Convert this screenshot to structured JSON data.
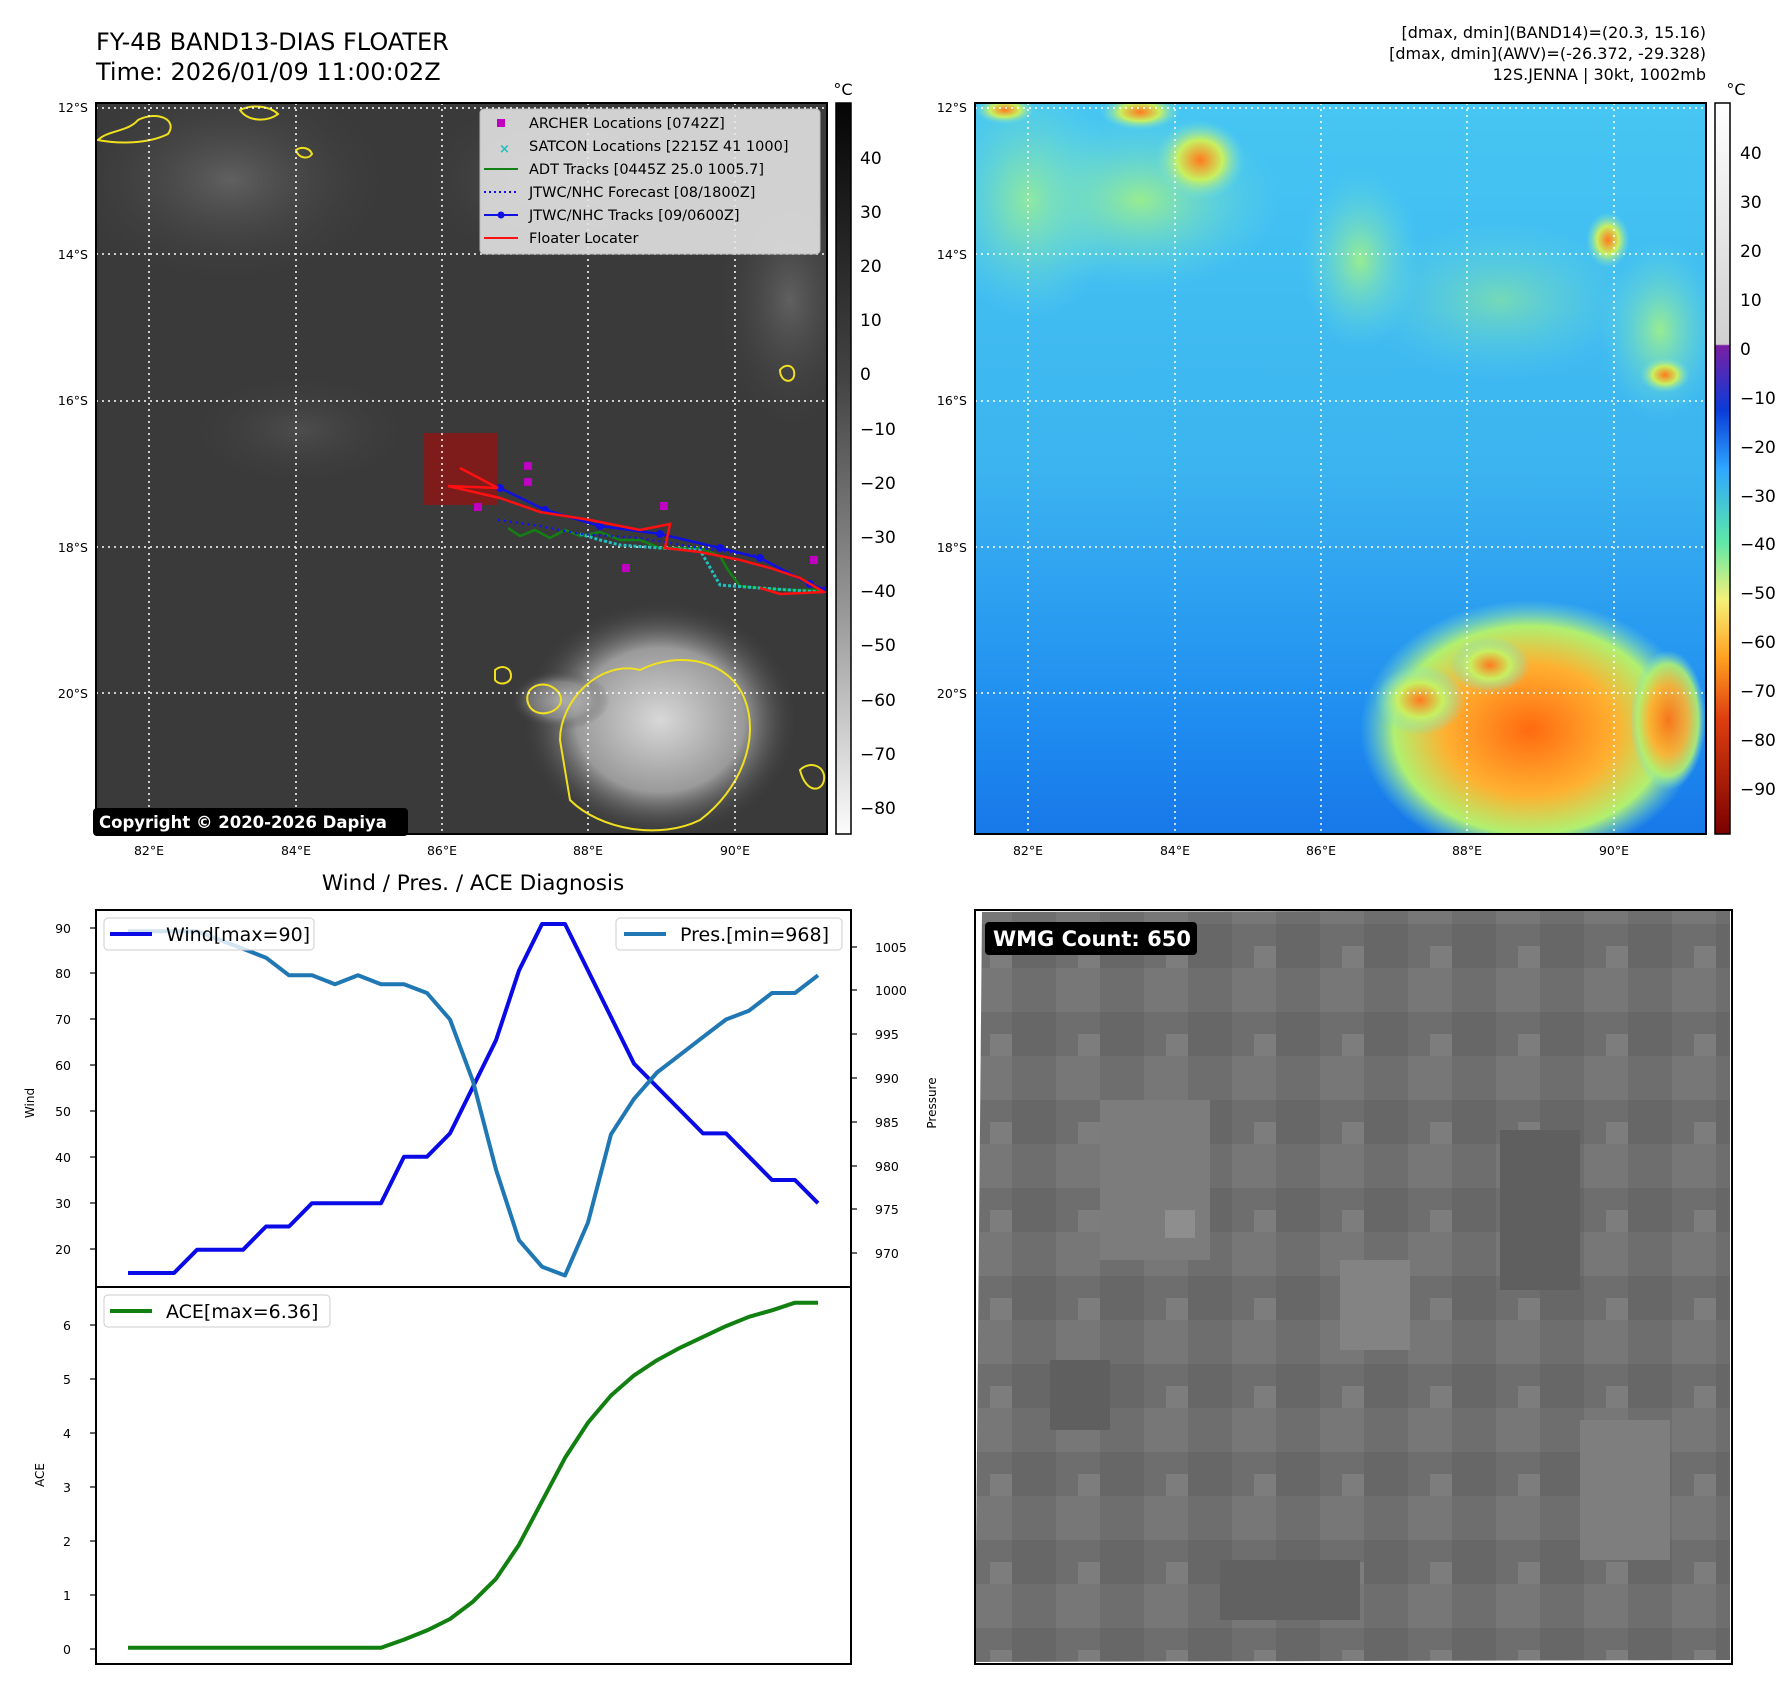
{
  "header": {
    "title_line1": "FY-4B BAND13-DIAS FLOATER",
    "title_line2": "Time: 2026/01/09 11:00:02Z",
    "info_line1": "[dmax, dmin](BAND14)=(20.3, 15.16)",
    "info_line2": "[dmax, dmin](AWV)=(-26.372, -29.328)",
    "info_line3": "12S.JENNA | 30kt, 1002mb"
  },
  "map": {
    "lon_ticks": [
      "82°E",
      "84°E",
      "86°E",
      "88°E",
      "90°E"
    ],
    "lat_ticks": [
      "12°S",
      "14°S",
      "16°S",
      "18°S",
      "20°S"
    ],
    "copyright": "Copyright © 2020-2026 Dapiya",
    "legend": [
      {
        "label": "ARCHER Locations [0742Z]",
        "color": "#c000c0",
        "marker": "square"
      },
      {
        "label": "SATCON Locations [2215Z 41 1000]",
        "color": "#1fc0c0",
        "marker": "x"
      },
      {
        "label": "ADT Tracks [0445Z 25.0 1005.7]",
        "color": "#138013",
        "marker": "line"
      },
      {
        "label": "JTWC/NHC Forecast [08/1800Z]",
        "color": "#1010ff",
        "marker": "dotted"
      },
      {
        "label": "JTWC/NHC Tracks [09/0600Z]",
        "color": "#1010e0",
        "marker": "line-dot"
      },
      {
        "label": "Floater Locater",
        "color": "#ff0000",
        "marker": "line"
      }
    ]
  },
  "colorbar_ir": {
    "unit": "°C",
    "ticks": [
      "40",
      "30",
      "20",
      "10",
      "0",
      "−10",
      "−20",
      "−30",
      "−40",
      "−50",
      "−60",
      "−70",
      "−80"
    ]
  },
  "colorbar_wv": {
    "unit": "°C",
    "ticks": [
      "40",
      "30",
      "20",
      "10",
      "0",
      "−10",
      "−20",
      "−30",
      "−40",
      "−50",
      "−60",
      "−70",
      "−80",
      "−90"
    ]
  },
  "diag": {
    "title": "Wind / Pres. / ACE Diagnosis",
    "wind_ylabel": "Wind",
    "pres_ylabel": "Pressure",
    "ace_ylabel": "ACE",
    "wind_legend": "Wind[max=90]",
    "pres_legend": "Pres.[min=968]",
    "ace_legend": "ACE[max=6.36]",
    "wind_ticks": [
      "20",
      "30",
      "40",
      "50",
      "60",
      "70",
      "80",
      "90"
    ],
    "pres_ticks": [
      "970",
      "975",
      "980",
      "985",
      "990",
      "995",
      "1000",
      "1005"
    ],
    "ace_ticks": [
      "0",
      "1",
      "2",
      "3",
      "4",
      "5",
      "6"
    ]
  },
  "wmg": {
    "label": "WMG Count: 650"
  },
  "chart_data": [
    {
      "type": "line",
      "title": "Wind / Pres. / ACE Diagnosis",
      "x": [
        0,
        1,
        2,
        3,
        4,
        5,
        6,
        7,
        8,
        9,
        10,
        11,
        12,
        13,
        14,
        15,
        16,
        17,
        18,
        19,
        20,
        21,
        22,
        23,
        24,
        25,
        26,
        27,
        28,
        29,
        30
      ],
      "series": [
        {
          "name": "Wind[max=90]",
          "axis": "left",
          "color": "#0a0ae6",
          "values": [
            15,
            15,
            15,
            20,
            20,
            20,
            25,
            25,
            30,
            30,
            30,
            30,
            40,
            40,
            45,
            55,
            65,
            80,
            90,
            90,
            80,
            70,
            60,
            55,
            50,
            45,
            45,
            40,
            35,
            35,
            30
          ]
        },
        {
          "name": "Pres.[min=968]",
          "axis": "right",
          "color": "#1f77b4",
          "values": [
            1007,
            1007,
            1007,
            1007,
            1006,
            1005,
            1004,
            1002,
            1002,
            1001,
            1002,
            1001,
            1001,
            1000,
            997,
            990,
            980,
            972,
            969,
            968,
            974,
            984,
            988,
            991,
            993,
            995,
            997,
            998,
            1000,
            1000,
            1002
          ]
        }
      ],
      "ylabel": "Wind",
      "ylim": [
        12,
        93
      ],
      "y2label": "Pressure",
      "y2lim": [
        966.7,
        1009.4
      ]
    },
    {
      "type": "line",
      "x": [
        0,
        1,
        2,
        3,
        4,
        5,
        6,
        7,
        8,
        9,
        10,
        11,
        12,
        13,
        14,
        15,
        16,
        17,
        18,
        19,
        20,
        21,
        22,
        23,
        24,
        25,
        26,
        27,
        28,
        29,
        30
      ],
      "series": [
        {
          "name": "ACE[max=6.36]",
          "color": "#118011",
          "values": [
            0,
            0,
            0,
            0,
            0,
            0,
            0,
            0,
            0,
            0,
            0,
            0,
            0.15,
            0.32,
            0.53,
            0.85,
            1.27,
            1.9,
            2.7,
            3.5,
            4.15,
            4.65,
            5.02,
            5.3,
            5.53,
            5.73,
            5.93,
            6.1,
            6.22,
            6.36,
            6.36
          ]
        }
      ],
      "ylabel": "ACE",
      "ylim": [
        -0.3,
        6.65
      ]
    }
  ]
}
